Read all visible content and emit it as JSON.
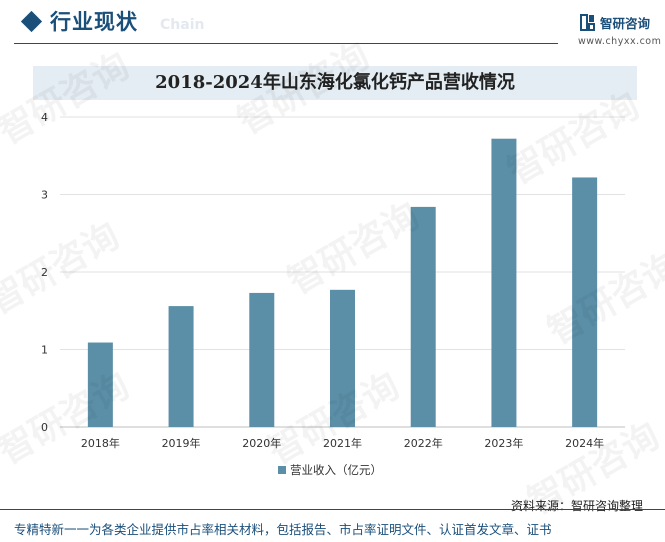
{
  "header": {
    "title": "行业现状",
    "ghost_text": "Chain",
    "logo_name": "智研咨询",
    "logo_url": "www.chyxx.com"
  },
  "colors": {
    "brand": "#1a4f7a",
    "bar": "#5b8fa8",
    "title_band": "#e4edf3"
  },
  "watermark_text": "智研咨询",
  "chart_data": {
    "type": "bar",
    "title": "2018-2024年山东海化氯化钙产品营收情况",
    "categories": [
      "2018年",
      "2019年",
      "2020年",
      "2021年",
      "2022年",
      "2023年",
      "2024年"
    ],
    "series": [
      {
        "name": "营业收入（亿元）",
        "values": [
          1.09,
          1.56,
          1.73,
          1.77,
          2.84,
          3.72,
          3.22
        ]
      }
    ],
    "ylim": [
      0,
      4
    ],
    "yticks": [
      0,
      1,
      2,
      3,
      4
    ],
    "grid": true,
    "legend_position": "bottom"
  },
  "source": "资料来源：智研咨询整理",
  "footer": "专精特新一一为各类企业提供市占率相关材料，包括报告、市占率证明文件、认证首发文章、证书"
}
